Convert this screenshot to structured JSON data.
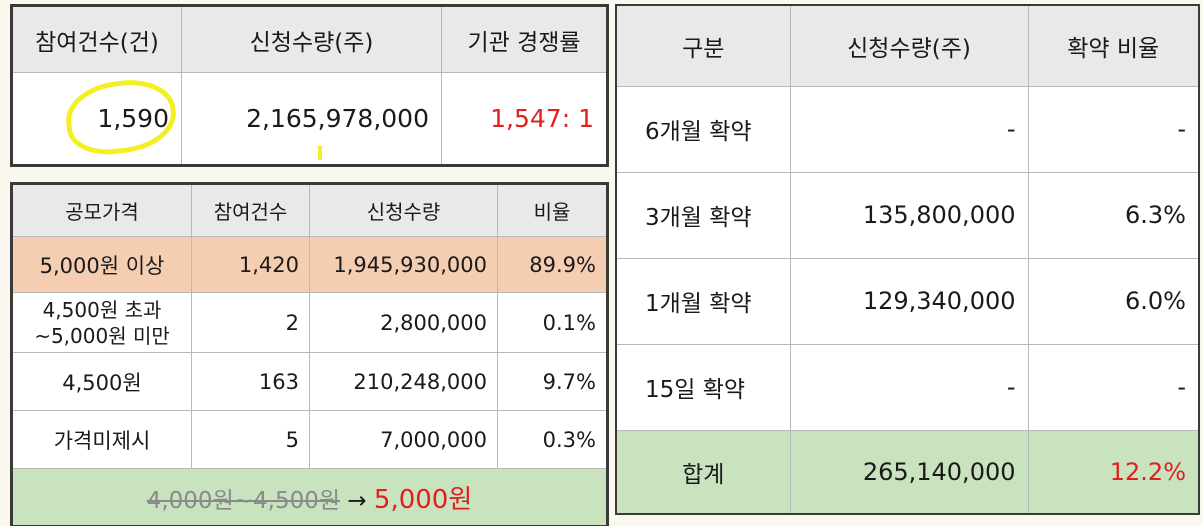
{
  "summary": {
    "headers": [
      "참여건수(건)",
      "신청수량(주)",
      "기관 경쟁률"
    ],
    "values": [
      "1,590",
      "2,165,978,000",
      "1,547: 1"
    ]
  },
  "price_table": {
    "headers": [
      "공모가격",
      "참여건수",
      "신청수량",
      "비율"
    ],
    "rows": [
      {
        "label": "5,000원 이상",
        "count": "1,420",
        "qty": "1,945,930,000",
        "ratio": "89.9%"
      },
      {
        "label": "4,500원 초과 ~5,000원 미만",
        "count": "2",
        "qty": "2,800,000",
        "ratio": "0.1%"
      },
      {
        "label": "4,500원",
        "count": "163",
        "qty": "210,248,000",
        "ratio": "9.7%"
      },
      {
        "label": "가격미제시",
        "count": "5",
        "qty": "7,000,000",
        "ratio": "0.3%"
      }
    ],
    "footer": {
      "old_price": "4,000원~4,500원",
      "arrow": "→",
      "new_price": "5,000원"
    }
  },
  "lockup_table": {
    "headers": [
      "구분",
      "신청수량(주)",
      "확약 비율"
    ],
    "rows": [
      {
        "label": "6개월 확약",
        "qty": "-",
        "ratio": "-"
      },
      {
        "label": "3개월 확약",
        "qty": "135,800,000",
        "ratio": "6.3%"
      },
      {
        "label": "1개월 확약",
        "qty": "129,340,000",
        "ratio": "6.0%"
      },
      {
        "label": "15일 확약",
        "qty": "-",
        "ratio": "-"
      }
    ],
    "total": {
      "label": "합계",
      "qty": "265,140,000",
      "ratio": "12.2%"
    }
  },
  "colors": {
    "highlight_row": "#f5cdb1",
    "footer_green": "#c9e3be",
    "accent_red": "#e02020",
    "marker_yellow": "#f4ef23"
  }
}
